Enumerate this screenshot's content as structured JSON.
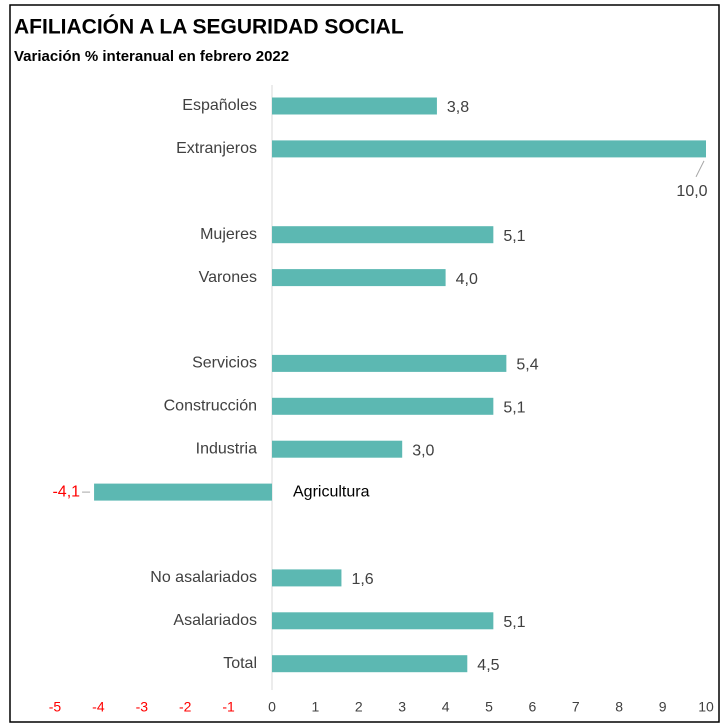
{
  "chart_data": {
    "type": "hbar",
    "title": "AFILIACIÓN A LA SEGURIDAD SOCIAL",
    "subtitle": "Variación % interanual en febrero 2022",
    "categories": [
      "Españoles",
      "Extranjeros",
      null,
      "Mujeres",
      "Varones",
      null,
      "Servicios",
      "Construcción",
      "Industria",
      "Agricultura",
      null,
      "No asalariados",
      "Asalariados",
      "Total"
    ],
    "values": [
      3.8,
      10.0,
      null,
      5.1,
      4.0,
      null,
      5.4,
      5.1,
      3.0,
      -4.1,
      null,
      1.6,
      5.1,
      4.5
    ],
    "value_labels": [
      "3,8",
      "10,0",
      null,
      "5,1",
      "4,0",
      null,
      "5,4",
      "5,1",
      "3,0",
      "-4,1",
      null,
      "1,6",
      "5,1",
      "4,5"
    ],
    "color": "#5cb8b2",
    "negative_label_color": "#ff0000",
    "xlim": [
      -5,
      10
    ],
    "xticks": [
      -5,
      -4,
      -3,
      -2,
      -1,
      0,
      1,
      2,
      3,
      4,
      5,
      6,
      7,
      8,
      9,
      10
    ]
  }
}
